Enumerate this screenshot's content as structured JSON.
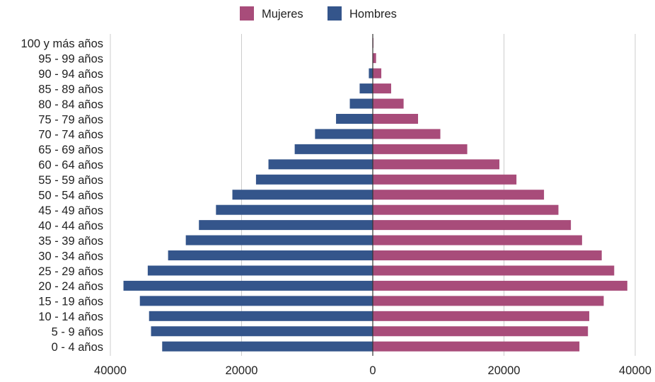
{
  "chart_data": {
    "type": "bar",
    "orientation": "horizontal",
    "layout": "population-pyramid",
    "categories": [
      "100 y más años",
      "95 - 99 años",
      "90 - 94 años",
      "85 - 89 años",
      "80 - 84 años",
      "75 - 79 años",
      "70 - 74 años",
      "65 - 69 años",
      "60 - 64 años",
      "55 - 59 años",
      "50 - 54 años",
      "45 - 49 años",
      "40 - 44 años",
      "35 - 39 años",
      "30 - 34 años",
      "25 - 29 años",
      "20 - 24 años",
      "15 - 19 años",
      "10 - 14 años",
      "5 - 9 años",
      "0 - 4 años"
    ],
    "series": [
      {
        "name": "Mujeres",
        "color": "#a84c7a",
        "side": "right",
        "values": [
          100,
          500,
          1300,
          2800,
          4700,
          6900,
          10300,
          14400,
          19300,
          21900,
          26100,
          28300,
          30200,
          31900,
          34900,
          36800,
          38800,
          35200,
          33000,
          32800,
          31500
        ]
      },
      {
        "name": "Hombres",
        "color": "#34558b",
        "side": "left",
        "values": [
          0,
          0,
          600,
          2000,
          3500,
          5600,
          8800,
          11900,
          15900,
          17800,
          21400,
          23900,
          26500,
          28500,
          31200,
          34300,
          38000,
          35500,
          34100,
          33800,
          32100
        ]
      }
    ],
    "xticks": [
      "40000",
      "20000",
      "0",
      "20000",
      "40000"
    ],
    "xlim": [
      -40000,
      40000
    ],
    "grid": true,
    "legend": "top-center",
    "title": "",
    "xlabel": "",
    "ylabel": ""
  }
}
